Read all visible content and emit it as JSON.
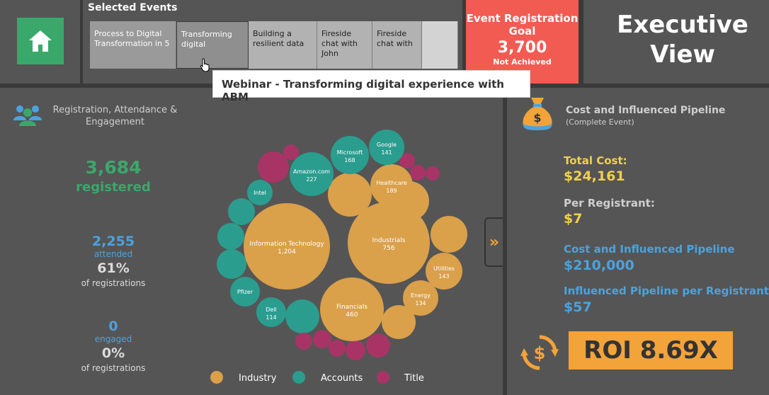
{
  "events": {
    "title": "Selected Events",
    "items": [
      {
        "label": "Process to Digital Transformation in 5",
        "style": "normal"
      },
      {
        "label": "Transforming digital",
        "style": "selected"
      },
      {
        "label": "Building a resilient data",
        "style": "dark"
      },
      {
        "label": "Fireside chat with John",
        "style": "dark"
      },
      {
        "label": "Fireside chat with",
        "style": "dark"
      },
      {
        "label": "",
        "style": "blank"
      }
    ]
  },
  "tooltip": "Webinar - Transforming digital experience with ABM",
  "goal": {
    "label": "Event Registration Goal",
    "value": "3,700",
    "status": "Not Achieved"
  },
  "exec": {
    "title": "Executive View"
  },
  "rae": {
    "title": "Registration, Attendance & Engagement",
    "registered_num": "3,684",
    "registered_label": "registered",
    "attended_num": "2,255",
    "attended_label": "attended",
    "attended_pct": "61%",
    "attended_sub": "of registrations",
    "engaged_num": "0",
    "engaged_label": "engaged",
    "engaged_pct": "0%",
    "engaged_sub": "of registrations"
  },
  "colors": {
    "industry": "#daa04a",
    "accounts": "#2a9d8f",
    "title": "#a83466"
  },
  "bubbles": [
    {
      "label": "Information Technology",
      "value": "1,204",
      "group": "industry"
    },
    {
      "label": "Industrials",
      "value": "756",
      "group": "industry"
    },
    {
      "label": "Financials",
      "value": "460",
      "group": "industry"
    },
    {
      "label": "Healthcare",
      "value": "189",
      "group": "industry"
    },
    {
      "label": "Utilities",
      "value": "143",
      "group": "industry"
    },
    {
      "label": "Energy",
      "value": "134",
      "group": "industry"
    },
    {
      "label": "Amazon.com",
      "value": "227",
      "group": "accounts"
    },
    {
      "label": "Microsoft",
      "value": "168",
      "group": "accounts"
    },
    {
      "label": "Google",
      "value": "141",
      "group": "accounts"
    },
    {
      "label": "Dell",
      "value": "114",
      "group": "accounts"
    },
    {
      "label": "Intel",
      "value": "",
      "group": "accounts"
    },
    {
      "label": "Pfizer",
      "value": "",
      "group": "accounts"
    }
  ],
  "legend": [
    {
      "label": "Industry",
      "group": "industry"
    },
    {
      "label": "Accounts",
      "group": "accounts"
    },
    {
      "label": "Title",
      "group": "title"
    }
  ],
  "cost": {
    "title": "Cost and Influenced Pipeline",
    "subtitle": "(Complete Event)",
    "total_cost_label": "Total Cost:",
    "total_cost": "$24,161",
    "per_reg_label": "Per Registrant:",
    "per_reg": "$7",
    "pipeline_label": "Cost and Influenced Pipeline",
    "pipeline": "$210,000",
    "pipe_per_reg_label": "Influenced Pipeline per Registrant",
    "pipe_per_reg": "$57"
  },
  "roi": "ROI 8.69X"
}
